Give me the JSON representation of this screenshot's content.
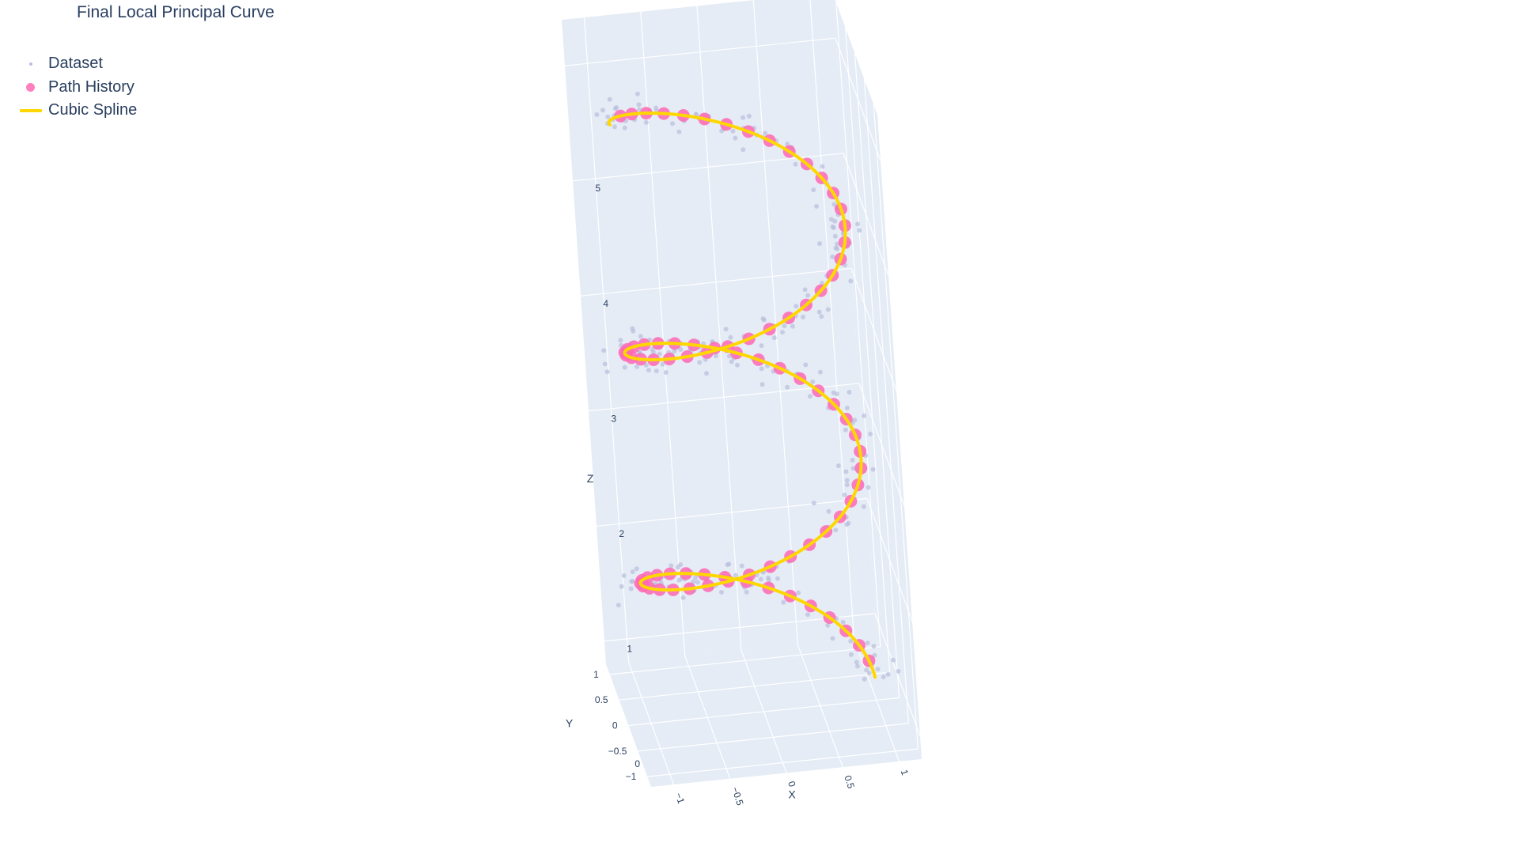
{
  "chart_data": {
    "type": "scatter3d",
    "title": "Final Local Principal Curve",
    "axes": {
      "x": {
        "label": "X",
        "range": [
          -1.2,
          1.2
        ],
        "ticks": [
          -1,
          -0.5,
          0,
          0.5,
          1
        ],
        "tick_labels": [
          "−1",
          "−0.5",
          "0",
          "0.5",
          "1"
        ]
      },
      "y": {
        "label": "Y",
        "range": [
          -1.2,
          1.2
        ],
        "ticks": [
          -1,
          -0.5,
          0,
          0.5,
          1
        ],
        "tick_labels": [
          "−1",
          "−0.5",
          "0",
          "0.5",
          "1"
        ]
      },
      "z": {
        "label": "Z",
        "range": [
          -0.2,
          5.4
        ],
        "ticks": [
          0,
          1,
          2,
          3,
          4,
          5
        ],
        "tick_labels": [
          "0",
          "1",
          "2",
          "3",
          "4",
          "5"
        ]
      }
    },
    "grid": true,
    "legend": {
      "placement": "top-left"
    },
    "helix": {
      "radius": 1.0,
      "z_start": 0.0,
      "z_end": 5.0,
      "turns": 2.5
    },
    "series": [
      {
        "name": "Dataset",
        "mode": "markers",
        "color": "#b9bfdc",
        "point_count": 300,
        "noise": 0.1
      },
      {
        "name": "Path History",
        "mode": "markers",
        "color": "#ff69b4",
        "point_count": 80
      },
      {
        "name": "Cubic Spline",
        "mode": "lines",
        "color": "#ffd700"
      }
    ]
  }
}
